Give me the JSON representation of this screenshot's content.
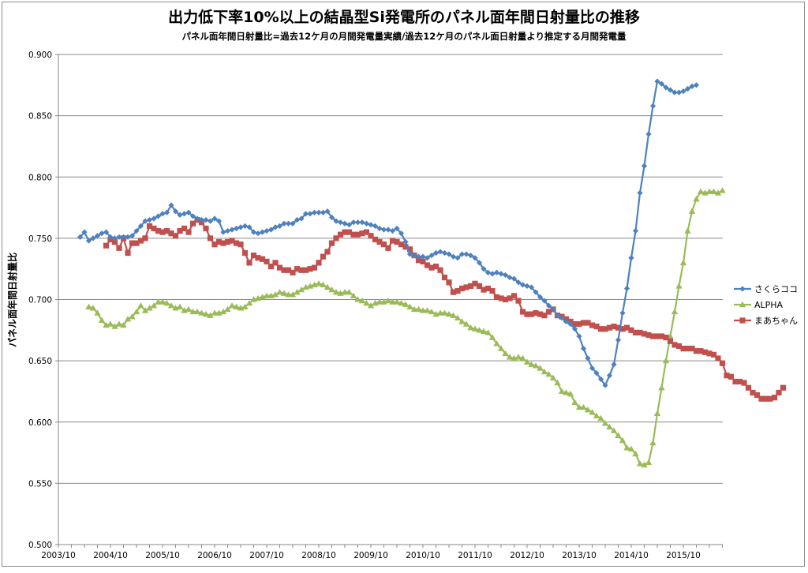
{
  "chart_data": {
    "type": "line",
    "title": "出力低下率10%以上の結晶型Si発電所のパネル面年間日射量比の推移",
    "subtitle": "パネル面年間日射量比=過去12ケ月の月間発電量実績/過去12ケ月のパネル面日射量より推定する月間発電量",
    "ylabel": "パネル面年間日射量比",
    "xlabel": "",
    "ylim": [
      0.5,
      0.9
    ],
    "yticks": [
      "0.500",
      "0.550",
      "0.600",
      "0.650",
      "0.700",
      "0.750",
      "0.800",
      "0.850",
      "0.900"
    ],
    "xticks": [
      "2003/10",
      "2004/10",
      "2005/10",
      "2006/10",
      "2007/10",
      "2008/10",
      "2009/10",
      "2010/10",
      "2011/10",
      "2012/10",
      "2013/10",
      "2014/10",
      "2015/10"
    ],
    "grid": "horizontal",
    "legend_position": "right",
    "series": [
      {
        "name": "さくらココ",
        "color": "#4f81bd",
        "marker": "diamond",
        "x_start": "2004/03",
        "values": [
          0.751,
          0.755,
          0.748,
          0.75,
          0.752,
          0.754,
          0.755,
          0.751,
          0.75,
          0.751,
          0.751,
          0.751,
          0.752,
          0.756,
          0.76,
          0.764,
          0.765,
          0.766,
          0.768,
          0.77,
          0.771,
          0.777,
          0.772,
          0.769,
          0.77,
          0.771,
          0.768,
          0.766,
          0.765,
          0.765,
          0.764,
          0.766,
          0.764,
          0.755,
          0.756,
          0.757,
          0.758,
          0.759,
          0.76,
          0.759,
          0.755,
          0.754,
          0.755,
          0.756,
          0.757,
          0.759,
          0.76,
          0.762,
          0.762,
          0.762,
          0.765,
          0.766,
          0.77,
          0.77,
          0.771,
          0.771,
          0.771,
          0.772,
          0.767,
          0.764,
          0.763,
          0.762,
          0.761,
          0.763,
          0.763,
          0.763,
          0.762,
          0.761,
          0.76,
          0.758,
          0.757,
          0.757,
          0.756,
          0.758,
          0.754,
          0.747,
          0.737,
          0.736,
          0.735,
          0.735,
          0.734,
          0.736,
          0.738,
          0.739,
          0.738,
          0.737,
          0.735,
          0.734,
          0.737,
          0.737,
          0.736,
          0.734,
          0.73,
          0.725,
          0.722,
          0.721,
          0.722,
          0.721,
          0.72,
          0.718,
          0.717,
          0.714,
          0.712,
          0.711,
          0.71,
          0.706,
          0.702,
          0.699,
          0.695,
          0.692,
          0.687,
          0.685,
          0.682,
          0.68,
          0.676,
          0.67,
          0.66,
          0.652,
          0.644,
          0.64,
          0.635,
          0.63,
          0.638,
          0.647,
          0.667,
          0.689,
          0.709,
          0.734,
          0.756,
          0.787,
          0.809,
          0.835,
          0.858,
          0.878,
          0.876,
          0.873,
          0.871,
          0.869,
          0.869,
          0.87,
          0.872,
          0.874,
          0.875
        ]
      },
      {
        "name": "ALPHA",
        "color": "#9bbb59",
        "marker": "triangle",
        "x_start": "2004/05",
        "values": [
          0.694,
          0.693,
          0.689,
          0.683,
          0.679,
          0.68,
          0.678,
          0.68,
          0.679,
          0.684,
          0.686,
          0.69,
          0.695,
          0.691,
          0.693,
          0.695,
          0.698,
          0.698,
          0.697,
          0.695,
          0.693,
          0.694,
          0.691,
          0.692,
          0.69,
          0.69,
          0.689,
          0.688,
          0.687,
          0.689,
          0.689,
          0.69,
          0.692,
          0.695,
          0.694,
          0.693,
          0.694,
          0.697,
          0.7,
          0.701,
          0.702,
          0.703,
          0.703,
          0.704,
          0.706,
          0.705,
          0.704,
          0.704,
          0.706,
          0.708,
          0.71,
          0.711,
          0.712,
          0.713,
          0.712,
          0.71,
          0.708,
          0.706,
          0.705,
          0.706,
          0.706,
          0.703,
          0.7,
          0.699,
          0.697,
          0.695,
          0.697,
          0.698,
          0.698,
          0.699,
          0.698,
          0.698,
          0.697,
          0.696,
          0.694,
          0.692,
          0.692,
          0.691,
          0.691,
          0.69,
          0.688,
          0.689,
          0.689,
          0.688,
          0.687,
          0.685,
          0.682,
          0.68,
          0.677,
          0.676,
          0.675,
          0.674,
          0.673,
          0.669,
          0.664,
          0.66,
          0.656,
          0.653,
          0.652,
          0.653,
          0.652,
          0.649,
          0.647,
          0.646,
          0.644,
          0.641,
          0.639,
          0.636,
          0.632,
          0.625,
          0.624,
          0.623,
          0.616,
          0.612,
          0.612,
          0.61,
          0.608,
          0.605,
          0.603,
          0.599,
          0.596,
          0.593,
          0.589,
          0.585,
          0.579,
          0.578,
          0.574,
          0.566,
          0.565,
          0.567,
          0.583,
          0.607,
          0.628,
          0.65,
          0.67,
          0.69,
          0.711,
          0.73,
          0.756,
          0.772,
          0.782,
          0.788,
          0.787,
          0.788,
          0.788,
          0.787,
          0.789
        ]
      },
      {
        "name": "まあちゃん",
        "color": "#c0504d",
        "marker": "square",
        "x_start": "2004/09",
        "values": [
          0.744,
          0.749,
          0.747,
          0.742,
          0.75,
          0.738,
          0.746,
          0.746,
          0.748,
          0.75,
          0.76,
          0.758,
          0.756,
          0.755,
          0.756,
          0.754,
          0.752,
          0.756,
          0.758,
          0.755,
          0.762,
          0.765,
          0.763,
          0.758,
          0.75,
          0.745,
          0.747,
          0.746,
          0.747,
          0.748,
          0.746,
          0.745,
          0.738,
          0.73,
          0.736,
          0.734,
          0.733,
          0.731,
          0.727,
          0.73,
          0.726,
          0.724,
          0.724,
          0.722,
          0.725,
          0.724,
          0.724,
          0.725,
          0.726,
          0.73,
          0.735,
          0.739,
          0.746,
          0.75,
          0.753,
          0.755,
          0.755,
          0.753,
          0.753,
          0.754,
          0.755,
          0.752,
          0.749,
          0.747,
          0.745,
          0.742,
          0.748,
          0.747,
          0.745,
          0.743,
          0.741,
          0.736,
          0.732,
          0.731,
          0.728,
          0.726,
          0.727,
          0.724,
          0.718,
          0.714,
          0.706,
          0.707,
          0.709,
          0.71,
          0.711,
          0.713,
          0.711,
          0.708,
          0.709,
          0.707,
          0.702,
          0.701,
          0.7,
          0.701,
          0.703,
          0.699,
          0.69,
          0.688,
          0.688,
          0.689,
          0.688,
          0.687,
          0.69,
          0.692,
          0.687,
          0.686,
          0.684,
          0.682,
          0.68,
          0.68,
          0.681,
          0.681,
          0.679,
          0.678,
          0.676,
          0.676,
          0.677,
          0.678,
          0.677,
          0.676,
          0.677,
          0.675,
          0.673,
          0.673,
          0.672,
          0.671,
          0.67,
          0.67,
          0.67,
          0.669,
          0.666,
          0.663,
          0.662,
          0.66,
          0.66,
          0.66,
          0.658,
          0.658,
          0.657,
          0.656,
          0.655,
          0.652,
          0.648,
          0.638,
          0.637,
          0.633,
          0.633,
          0.632,
          0.628,
          0.624,
          0.622,
          0.619,
          0.619,
          0.619,
          0.62,
          0.624,
          0.628
        ]
      }
    ]
  }
}
